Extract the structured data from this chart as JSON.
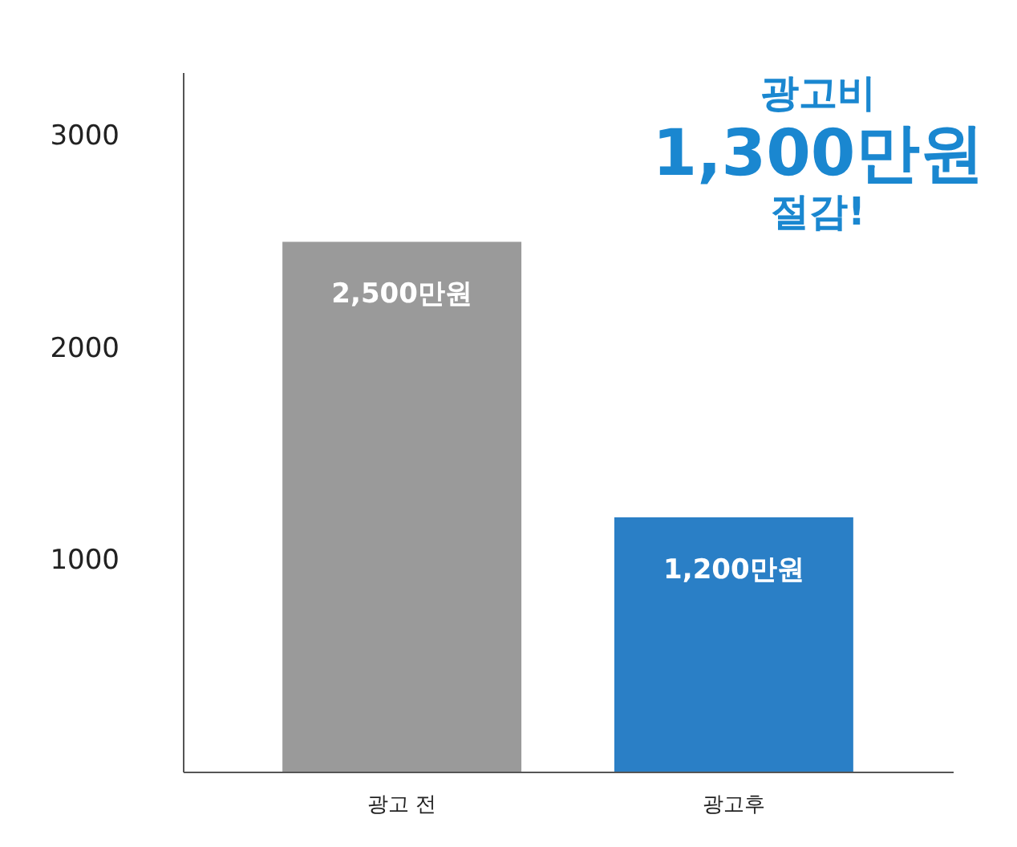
{
  "chart_data": {
    "type": "bar",
    "categories": [
      "광고 전",
      "광고후"
    ],
    "values": [
      2500,
      1200
    ],
    "colors": [
      "#9a9a9a",
      "#2a7fc6"
    ],
    "value_labels": [
      "2,500만원",
      "1,200만원"
    ],
    "ylim": [
      0,
      3300
    ],
    "yticks": [
      {
        "value": 1000,
        "label": "1000"
      },
      {
        "value": 2000,
        "label": "2000"
      },
      {
        "value": 3000,
        "label": "3000"
      }
    ],
    "grid": false,
    "annotations": [
      "광고비",
      "1,300만원",
      "절감!"
    ]
  }
}
